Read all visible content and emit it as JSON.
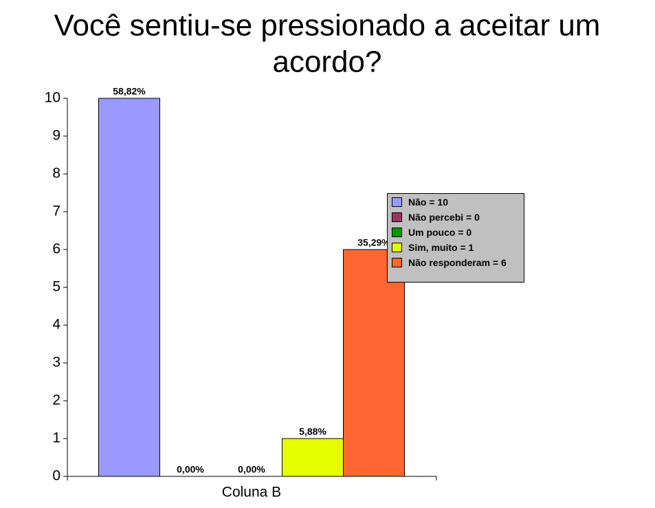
{
  "chart_data": {
    "type": "bar",
    "title": [
      "Você sentiu-se pressionado a aceitar um",
      "acordo?"
    ],
    "categories": [
      "Coluna B"
    ],
    "series": [
      {
        "name": "Não = 10",
        "color": "#9999ff",
        "values": [
          10
        ],
        "share": [
          58.82
        ],
        "share_labels": [
          "58,82%"
        ]
      },
      {
        "name": "Não percebi = 0",
        "color": "#993366",
        "values": [
          0
        ],
        "share": [
          0
        ],
        "share_labels": [
          "0,00%"
        ]
      },
      {
        "name": "Um pouco = 0",
        "color": "#009900",
        "values": [
          0
        ],
        "share": [
          0
        ],
        "share_labels": [
          "0,00%"
        ]
      },
      {
        "name": "Sim, muito = 1",
        "color": "#e6ff00",
        "values": [
          1
        ],
        "share": [
          5.88
        ],
        "share_labels": [
          "5,88%"
        ]
      },
      {
        "name": "Não responderam = 6",
        "color": "#ff6633",
        "values": [
          6
        ],
        "share": [
          35.29
        ],
        "share_labels": [
          "35,29%"
        ]
      }
    ],
    "ylim": [
      0,
      10
    ],
    "yticks": [
      0,
      1,
      2,
      3,
      4,
      5,
      6,
      7,
      8,
      9,
      10
    ],
    "legend": "right"
  }
}
